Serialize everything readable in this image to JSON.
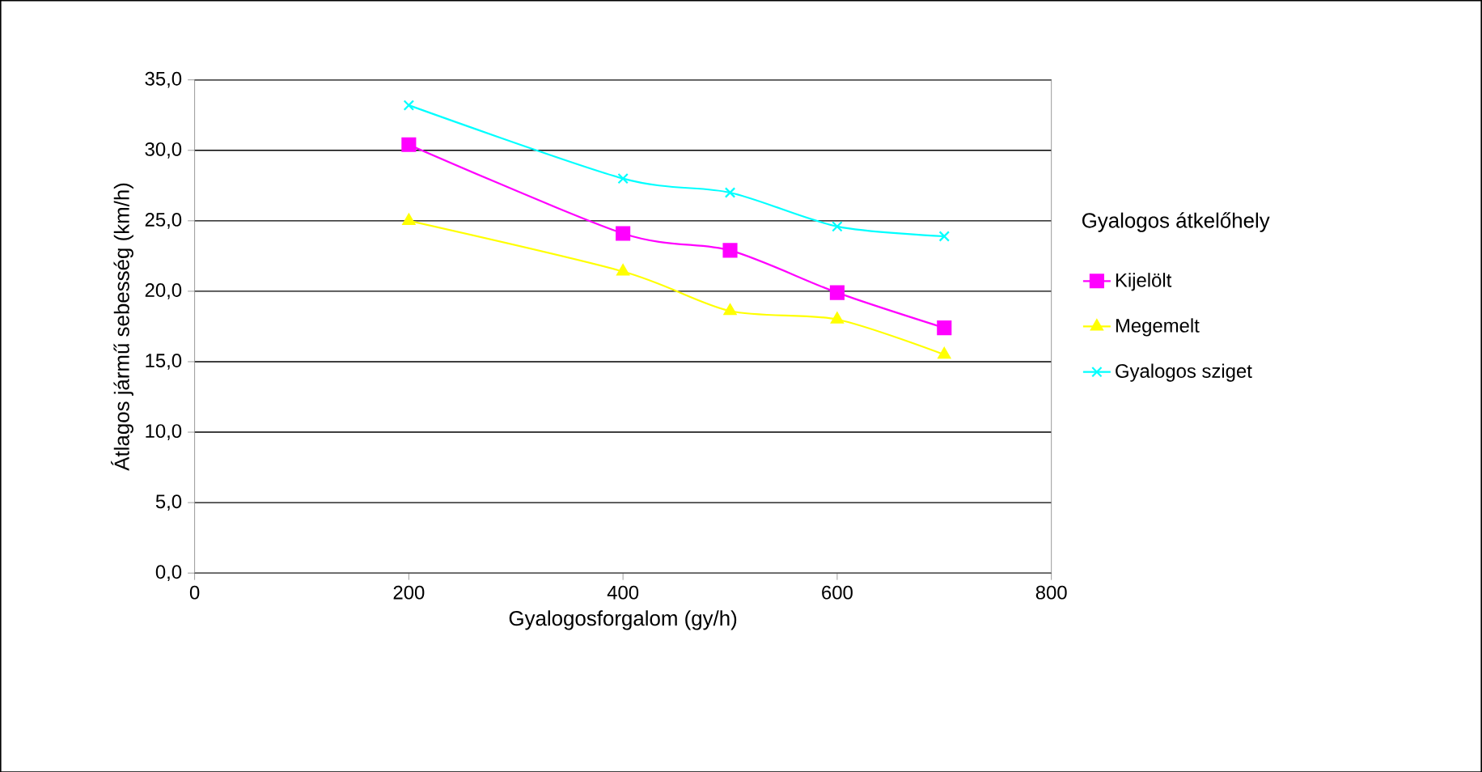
{
  "chart_data": {
    "type": "line",
    "xlabel": "Gyalogosforgalom (gy/h)",
    "ylabel": "Átlagos jármű sebesség (km/h)",
    "legend_title": "Gyalogos átkelőhely",
    "x": [
      200,
      400,
      500,
      600,
      700
    ],
    "series": [
      {
        "name": "Kijelölt",
        "color": "#ff00ff",
        "marker": "square",
        "values": [
          30.4,
          24.1,
          22.9,
          19.9,
          17.4
        ]
      },
      {
        "name": "Megemelt",
        "color": "#ffff00",
        "marker": "triangle",
        "values": [
          25.0,
          21.4,
          18.6,
          18.0,
          15.5
        ]
      },
      {
        "name": "Gyalogos sziget",
        "color": "#00ffff",
        "marker": "cross",
        "values": [
          33.2,
          28.0,
          27.0,
          24.6,
          23.9
        ]
      }
    ],
    "xlim": [
      0,
      800
    ],
    "xticks": [
      0,
      200,
      400,
      600,
      800
    ],
    "ylim": [
      0,
      35
    ],
    "yticks": [
      {
        "value": 0,
        "label": "0,0"
      },
      {
        "value": 5,
        "label": "5,0"
      },
      {
        "value": 10,
        "label": "10,0"
      },
      {
        "value": 15,
        "label": "15,0"
      },
      {
        "value": 20,
        "label": "20,0"
      },
      {
        "value": 25,
        "label": "25,0"
      },
      {
        "value": 30,
        "label": "30,0"
      },
      {
        "value": 35,
        "label": "35,0"
      }
    ],
    "grid": "y",
    "legend": "right"
  }
}
